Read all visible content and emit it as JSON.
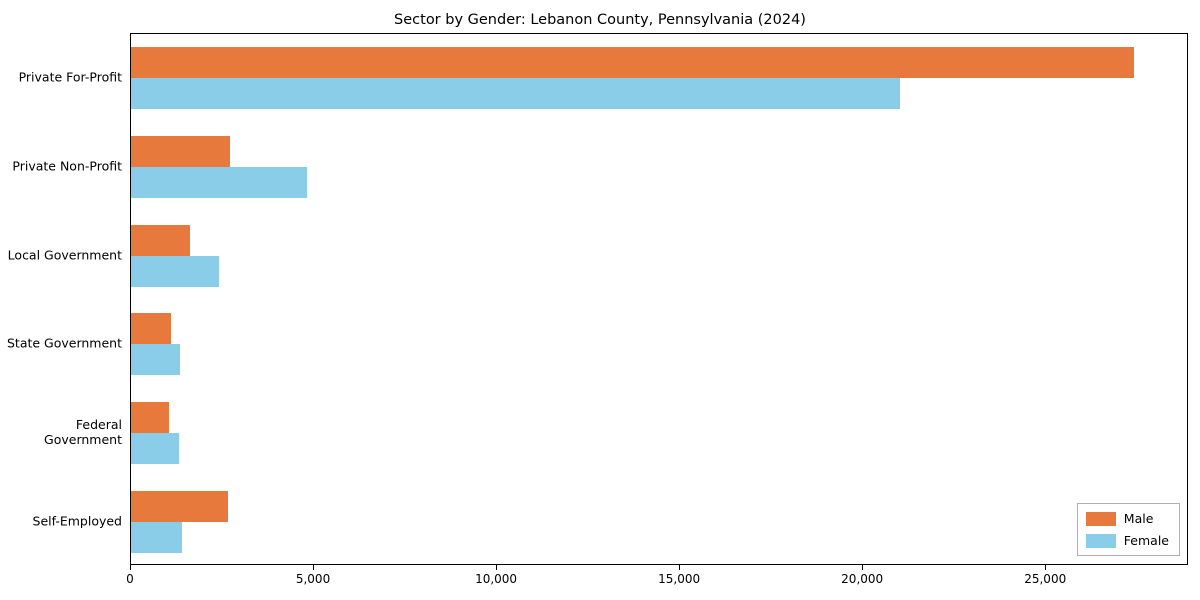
{
  "chart_data": {
    "type": "bar",
    "orientation": "horizontal",
    "title": "Sector by Gender: Lebanon County, Pennsylvania (2024)",
    "categories": [
      "Private For-Profit",
      "Private Non-Profit",
      "Local Government",
      "State Government",
      "Federal Government",
      "Self-Employed"
    ],
    "series": [
      {
        "name": "Male",
        "color": "#e8793d",
        "values": [
          27400,
          2700,
          1600,
          1100,
          1050,
          2650
        ]
      },
      {
        "name": "Female",
        "color": "#89cde8",
        "values": [
          21000,
          4800,
          2400,
          1350,
          1300,
          1400
        ]
      }
    ],
    "xlim": [
      0,
      28900
    ],
    "xticks": [
      0,
      5000,
      10000,
      15000,
      20000,
      25000
    ],
    "xtick_labels": [
      "0",
      "5,000",
      "10,000",
      "15,000",
      "20,000",
      "25,000"
    ],
    "legend_position": "lower right",
    "grid": false
  }
}
